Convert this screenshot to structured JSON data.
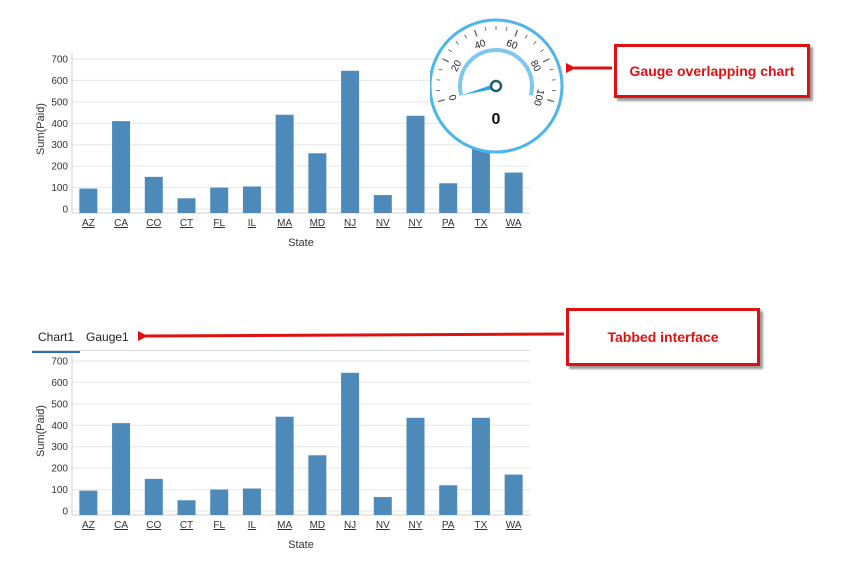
{
  "tabs": [
    {
      "label": "Chart1",
      "active": true
    },
    {
      "label": "Gauge1",
      "active": false
    }
  ],
  "gauge": {
    "value": 0,
    "value_text": "0",
    "min": 0,
    "max": 100,
    "tick_labels": [
      "0",
      "20",
      "40",
      "60",
      "80",
      "100"
    ],
    "ring_color": "#4cb6ec",
    "needle_color": "#2fa4e7",
    "band_color": "#7ec8f0"
  },
  "callouts": {
    "gauge_overlap": "Gauge overlapping chart",
    "tabbed_interface": "Tabbed interface",
    "color": "#e01010"
  },
  "bar_color": "#4d89b9",
  "chart_data": [
    {
      "type": "bar",
      "ylabel": "Sum(Paid)",
      "xlabel": "State",
      "ylim": [
        0,
        700
      ],
      "yticks": [
        0,
        100,
        200,
        300,
        400,
        500,
        600,
        700
      ],
      "grid": true,
      "categories": [
        "AZ",
        "CA",
        "CO",
        "CT",
        "FL",
        "IL",
        "MA",
        "MD",
        "NJ",
        "NV",
        "NY",
        "PA",
        "TX",
        "WA"
      ],
      "values": [
        95,
        410,
        150,
        50,
        100,
        105,
        440,
        260,
        645,
        65,
        435,
        120,
        435,
        170
      ]
    },
    {
      "type": "bar",
      "ylabel": "Sum(Paid)",
      "xlabel": "State",
      "ylim": [
        0,
        700
      ],
      "yticks": [
        0,
        100,
        200,
        300,
        400,
        500,
        600,
        700
      ],
      "grid": true,
      "categories": [
        "AZ",
        "CA",
        "CO",
        "CT",
        "FL",
        "IL",
        "MA",
        "MD",
        "NJ",
        "NV",
        "NY",
        "PA",
        "TX",
        "WA"
      ],
      "values": [
        95,
        410,
        150,
        50,
        100,
        105,
        440,
        260,
        645,
        65,
        435,
        120,
        435,
        170
      ]
    }
  ]
}
